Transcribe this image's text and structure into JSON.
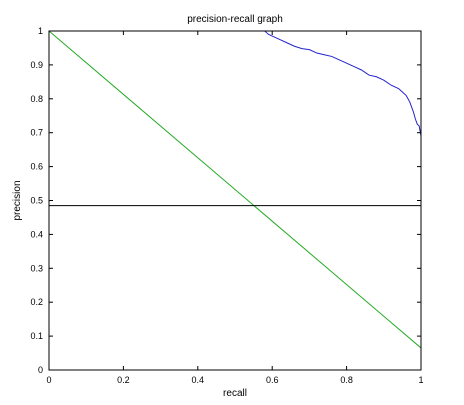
{
  "chart_data": {
    "type": "line",
    "title": "precision-recall graph",
    "xlabel": "recall",
    "ylabel": "precision",
    "xlim": [
      0,
      1
    ],
    "ylim": [
      0,
      1
    ],
    "xticks": [
      "0",
      "0.2",
      "0.4",
      "0.6",
      "0.8",
      "1"
    ],
    "yticks": [
      "0",
      "0.1",
      "0.2",
      "0.3",
      "0.4",
      "0.5",
      "0.6",
      "0.7",
      "0.8",
      "0.9",
      "1"
    ],
    "grid": false,
    "series": [
      {
        "color": "#2222cc",
        "x": [
          0.52,
          0.53,
          0.54,
          0.55,
          0.56,
          0.57,
          0.58,
          0.585,
          0.59,
          0.6,
          0.62,
          0.64,
          0.66,
          0.68,
          0.7,
          0.72,
          0.74,
          0.76,
          0.78,
          0.8,
          0.82,
          0.84,
          0.86,
          0.88,
          0.9,
          0.92,
          0.94,
          0.95,
          0.96,
          0.965,
          0.97,
          0.975,
          0.98,
          0.985,
          0.99,
          0.995,
          1.0
        ],
        "y": [
          1.0,
          1.0,
          1.0,
          1.0,
          1.0,
          1.0,
          1.0,
          0.995,
          0.99,
          0.985,
          0.975,
          0.965,
          0.955,
          0.948,
          0.945,
          0.935,
          0.93,
          0.925,
          0.915,
          0.905,
          0.895,
          0.885,
          0.87,
          0.865,
          0.855,
          0.84,
          0.83,
          0.82,
          0.81,
          0.8,
          0.79,
          0.775,
          0.76,
          0.74,
          0.725,
          0.72,
          0.69
        ]
      },
      {
        "color": "#22aa22",
        "x": [
          0,
          1
        ],
        "y": [
          1.0,
          0.065
        ]
      },
      {
        "color": "#000000",
        "x": [
          0,
          1
        ],
        "y": [
          0.485,
          0.485
        ]
      }
    ]
  }
}
